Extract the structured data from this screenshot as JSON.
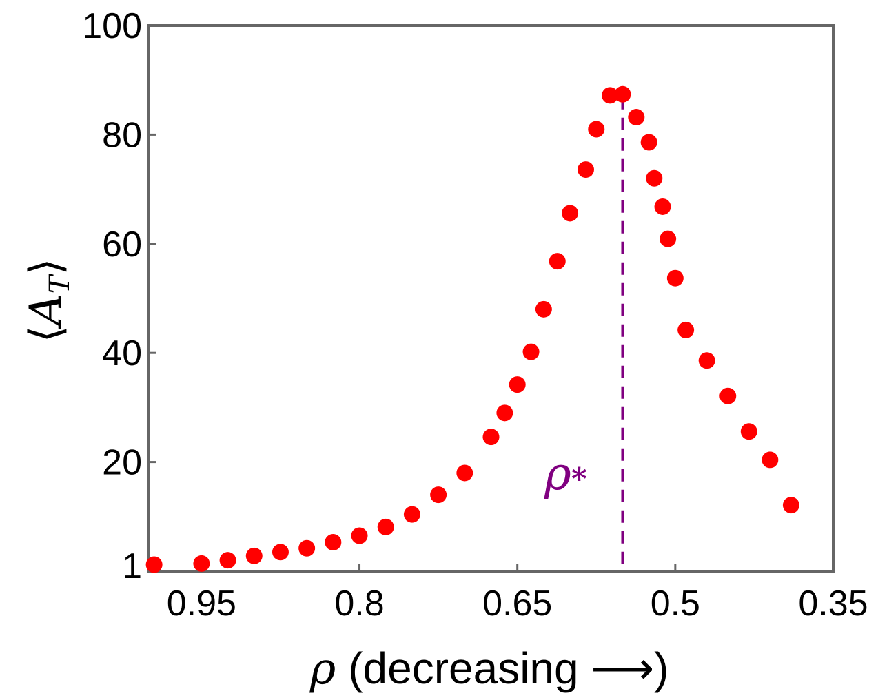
{
  "chart_data": {
    "type": "scatter",
    "title": "",
    "xlabel_symbol": "ρ",
    "xlabel_text": "(decreasing ⟶)",
    "ylabel_open": "⟨",
    "ylabel_symbol": "A",
    "ylabel_subscript": "T",
    "ylabel_close": "⟩",
    "x_reversed": true,
    "xlim": [
      1.0,
      0.35
    ],
    "ylim": [
      0,
      100
    ],
    "xticks": [
      {
        "value": 0.95,
        "label": "0.95"
      },
      {
        "value": 0.8,
        "label": "0.8"
      },
      {
        "value": 0.65,
        "label": "0.65"
      },
      {
        "value": 0.5,
        "label": "0.5"
      },
      {
        "value": 0.35,
        "label": "0.35"
      }
    ],
    "yticks": [
      {
        "value": 1,
        "label": "1"
      },
      {
        "value": 20,
        "label": "20"
      },
      {
        "value": 40,
        "label": "40"
      },
      {
        "value": 60,
        "label": "60"
      },
      {
        "value": 80,
        "label": "80"
      },
      {
        "value": 100,
        "label": "100"
      }
    ],
    "series": [
      {
        "name": "⟨A_T⟩",
        "color": "#ff0000",
        "points": [
          {
            "x": 0.995,
            "y": 1.2
          },
          {
            "x": 0.95,
            "y": 1.4
          },
          {
            "x": 0.925,
            "y": 2.0
          },
          {
            "x": 0.9,
            "y": 2.8
          },
          {
            "x": 0.875,
            "y": 3.5
          },
          {
            "x": 0.85,
            "y": 4.2
          },
          {
            "x": 0.825,
            "y": 5.3
          },
          {
            "x": 0.8,
            "y": 6.5
          },
          {
            "x": 0.775,
            "y": 8.1
          },
          {
            "x": 0.75,
            "y": 10.4
          },
          {
            "x": 0.725,
            "y": 14.0
          },
          {
            "x": 0.7,
            "y": 18.0
          },
          {
            "x": 0.675,
            "y": 24.6
          },
          {
            "x": 0.662,
            "y": 29.0
          },
          {
            "x": 0.65,
            "y": 34.2
          },
          {
            "x": 0.637,
            "y": 40.2
          },
          {
            "x": 0.625,
            "y": 48.0
          },
          {
            "x": 0.612,
            "y": 56.8
          },
          {
            "x": 0.6,
            "y": 65.6
          },
          {
            "x": 0.585,
            "y": 73.6
          },
          {
            "x": 0.575,
            "y": 81.0
          },
          {
            "x": 0.562,
            "y": 87.2
          },
          {
            "x": 0.55,
            "y": 87.4
          },
          {
            "x": 0.537,
            "y": 83.2
          },
          {
            "x": 0.525,
            "y": 78.6
          },
          {
            "x": 0.52,
            "y": 72.0
          },
          {
            "x": 0.512,
            "y": 66.8
          },
          {
            "x": 0.507,
            "y": 60.9
          },
          {
            "x": 0.5,
            "y": 53.7
          },
          {
            "x": 0.49,
            "y": 44.2
          },
          {
            "x": 0.47,
            "y": 38.6
          },
          {
            "x": 0.45,
            "y": 32.1
          },
          {
            "x": 0.43,
            "y": 25.6
          },
          {
            "x": 0.41,
            "y": 20.4
          },
          {
            "x": 0.39,
            "y": 12.1
          }
        ]
      }
    ],
    "annotations": [
      {
        "type": "vline",
        "x": 0.55,
        "style": "dashed",
        "color": "#800080",
        "label_symbol": "ρ",
        "label_sub": "*"
      }
    ],
    "grid": false,
    "frame_color": "#666666",
    "tick_color": "#666666"
  }
}
